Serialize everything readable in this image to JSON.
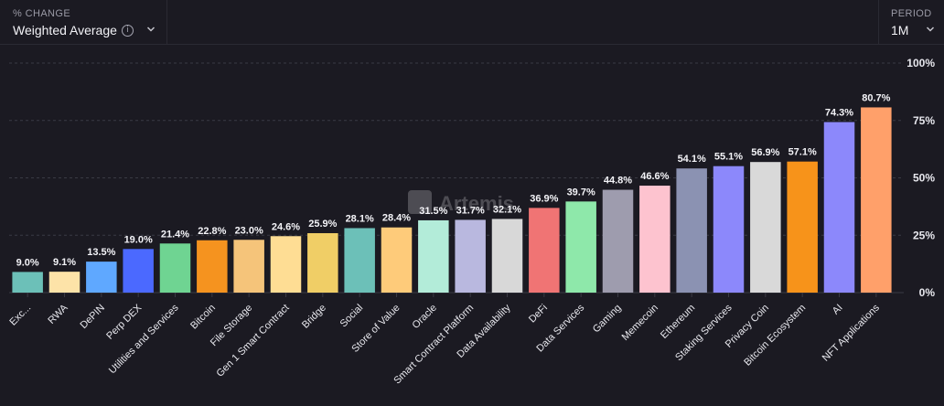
{
  "controls": {
    "metric_caption": "% CHANGE",
    "metric_value": "Weighted Average",
    "period_caption": "PERIOD",
    "period_value": "1M"
  },
  "watermark": "Artemis",
  "colors": {
    "background": "#1b1a22",
    "grid": "#3a3a44",
    "text": "#e8e8ee"
  },
  "chart_data": {
    "type": "bar",
    "categories": [
      "Exc...",
      "RWA",
      "DePIN",
      "Perp DEX",
      "Utilities and Services",
      "Bitcoin",
      "File Storage",
      "Gen 1 Smart Contract",
      "Bridge",
      "Social",
      "Store of Value",
      "Oracle",
      "Smart Contract Platform",
      "Data Availability",
      "DeFi",
      "Data Services",
      "Gaming",
      "Memecoin",
      "Ethereum",
      "Staking Services",
      "Privacy Coin",
      "Bitcoin Ecosystem",
      "AI",
      "NFT Applications"
    ],
    "values": [
      9.0,
      9.1,
      13.5,
      19.0,
      21.4,
      22.8,
      23.0,
      24.6,
      25.9,
      28.1,
      28.4,
      31.5,
      31.7,
      32.1,
      36.9,
      39.7,
      44.8,
      46.6,
      54.1,
      55.1,
      56.9,
      57.1,
      74.3,
      80.7
    ],
    "data_labels": [
      "9.0%",
      "9.1%",
      "13.5%",
      "19.0%",
      "21.4%",
      "22.8%",
      "23.0%",
      "24.6%",
      "25.9%",
      "28.1%",
      "28.4%",
      "31.5%",
      "31.7%",
      "32.1%",
      "36.9%",
      "39.7%",
      "44.8%",
      "46.6%",
      "54.1%",
      "55.1%",
      "56.9%",
      "57.1%",
      "74.3%",
      "80.7%"
    ],
    "colors": [
      "#6cc0b8",
      "#fde3a8",
      "#5fa8ff",
      "#4b69ff",
      "#6fd492",
      "#f5931f",
      "#f5c47a",
      "#fedd94",
      "#f0ce66",
      "#6cc0b8",
      "#fecb7a",
      "#b3ecd9",
      "#b9b8df",
      "#d8d8d8",
      "#f07474",
      "#8ee8aa",
      "#9e9cae",
      "#fdc3cf",
      "#8b92b2",
      "#8c88fb",
      "#d9d9d9",
      "#f7931a",
      "#8c88fb",
      "#ffa06a"
    ],
    "ylim": [
      0,
      100
    ],
    "y_ticks": [
      "0%",
      "25%",
      "50%",
      "75%",
      "100%"
    ],
    "y_axis_side": "right",
    "grid": true
  }
}
